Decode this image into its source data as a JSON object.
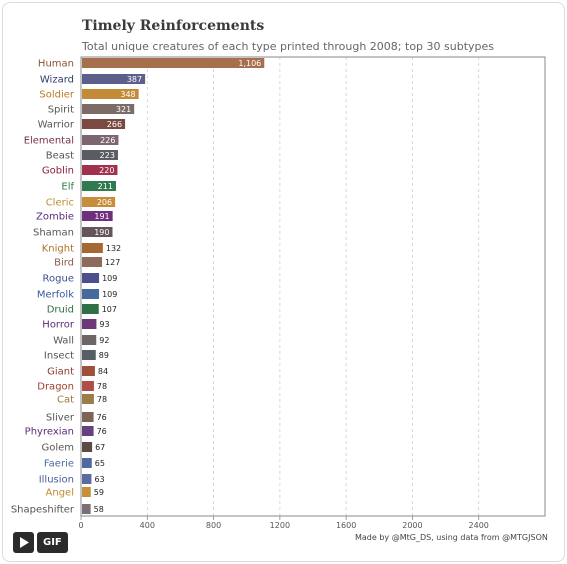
{
  "title": "Timely Reinforcements",
  "subtitle": "Total unique creatures of each type printed through 2008; top 30 subtypes",
  "credit": "Made by @MtG_DS, using data from @MTGJSON",
  "controls": {
    "play_icon": "play-icon",
    "gif_label": "GIF"
  },
  "chart_data": {
    "type": "bar",
    "orientation": "horizontal",
    "title": "Timely Reinforcements",
    "subtitle": "Total unique creatures of each type printed through 2008; top 30 subtypes",
    "xlabel": "",
    "ylabel": "",
    "xlim": [
      0,
      2800
    ],
    "x_ticks": [
      0,
      400,
      800,
      1200,
      1600,
      2000,
      2400
    ],
    "grid": "vertical dashed",
    "categories": [
      "Human",
      "Wizard",
      "Soldier",
      "Spirit",
      "Warrior",
      "Elemental",
      "Beast",
      "Goblin",
      "Elf",
      "Cleric",
      "Zombie",
      "Shaman",
      "Knight",
      "Bird",
      "Rogue",
      "Merfolk",
      "Druid",
      "Horror",
      "Wall",
      "Insect",
      "Giant",
      "Dragon",
      "Cat",
      "Sliver",
      "Phyrexian",
      "Golem",
      "Faerie",
      "Illusion",
      "Angel",
      "Shapeshifter"
    ],
    "values": [
      1106,
      387,
      348,
      321,
      266,
      226,
      223,
      220,
      211,
      206,
      191,
      190,
      132,
      127,
      109,
      109,
      107,
      93,
      92,
      89,
      84,
      78,
      78,
      76,
      76,
      67,
      65,
      63,
      59,
      58
    ],
    "value_labels": [
      "1,106",
      "387",
      "348",
      "321",
      "266",
      "226",
      "223",
      "220",
      "211",
      "206",
      "191",
      "190",
      "132",
      "127",
      "109",
      "109",
      "107",
      "93",
      "92",
      "89",
      "84",
      "78",
      "78",
      "76",
      "76",
      "67",
      "65",
      "63",
      "59",
      "58"
    ],
    "bar_colors": [
      "#a86f4e",
      "#5c5f8c",
      "#c38a38",
      "#7c6b66",
      "#7a4a42",
      "#7b6671",
      "#5a5c65",
      "#a0314f",
      "#2f7a4f",
      "#c78d3a",
      "#6e2f7c",
      "#65545b",
      "#a56833",
      "#8d6c5c",
      "#4b4f8d",
      "#466a9e",
      "#2f7046",
      "#6b3a7a",
      "#6e6568",
      "#585d66",
      "#a0503a",
      "#ad4f46",
      "#9b7d49",
      "#7e6358",
      "#6a3f80",
      "#5c4a44",
      "#4e6aa2",
      "#5d6aa0",
      "#c78f38",
      "#7b6f75"
    ],
    "label_colors": [
      "#8c5330",
      "#2f3a6e",
      "#b87a26",
      "#555555",
      "#555555",
      "#7a2f52",
      "#555555",
      "#8a1f3a",
      "#2e7a46",
      "#c08a2e",
      "#5a2a7a",
      "#555555",
      "#b07026",
      "#8a5a48",
      "#3d4f8a",
      "#3a5a9a",
      "#2d6e42",
      "#5a2a7a",
      "#555555",
      "#555555",
      "#8a4030",
      "#a04030",
      "#9a7a3a",
      "#555555",
      "#5a2a7a",
      "#555555",
      "#4a6aa0",
      "#4a5a9a",
      "#c08a2e",
      "#555555"
    ],
    "row_y": [
      63,
      79,
      94,
      109,
      124,
      140,
      155,
      170,
      186,
      202,
      216,
      232,
      248,
      262,
      278,
      294,
      309,
      324,
      340,
      355,
      371,
      386,
      399,
      417,
      431,
      447,
      463,
      479,
      492,
      509
    ]
  }
}
